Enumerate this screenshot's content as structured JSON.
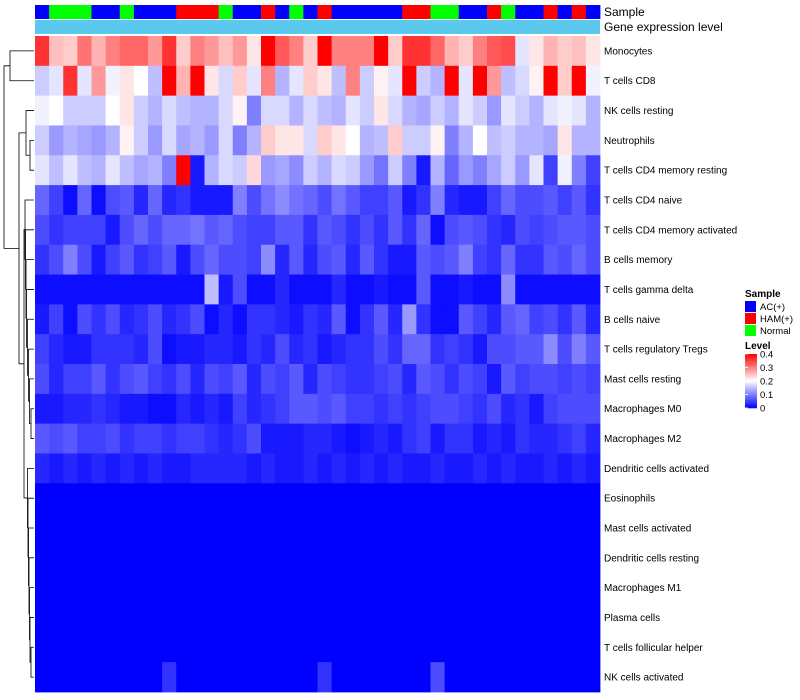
{
  "chart_data": {
    "type": "heatmap",
    "annotation_titles": [
      "Sample",
      "Gene expression level"
    ],
    "colors": {
      "AC(+)": "#0000ff",
      "HAM(+)": "#ff0000",
      "Normal": "#00ff00",
      "gene_expression_bar": "#5bc8ee",
      "low": "#0000ff",
      "mid": "#ffffff",
      "high": "#ff0000"
    },
    "sample_groups": [
      "AC(+)",
      "Normal",
      "Normal",
      "Normal",
      "AC(+)",
      "AC(+)",
      "Normal",
      "AC(+)",
      "AC(+)",
      "AC(+)",
      "HAM(+)",
      "HAM(+)",
      "HAM(+)",
      "Normal",
      "AC(+)",
      "AC(+)",
      "HAM(+)",
      "AC(+)",
      "Normal",
      "AC(+)",
      "HAM(+)",
      "AC(+)",
      "AC(+)",
      "AC(+)",
      "AC(+)",
      "AC(+)",
      "HAM(+)",
      "HAM(+)",
      "Normal",
      "Normal",
      "AC(+)",
      "AC(+)",
      "HAM(+)",
      "Normal",
      "AC(+)",
      "AC(+)",
      "HAM(+)",
      "AC(+)",
      "HAM(+)",
      "AC(+)"
    ],
    "rows": [
      "Monocytes",
      "T cells CD8",
      "NK cells resting",
      "Neutrophils",
      "T cells CD4 memory resting",
      "T cells CD4 naive",
      "T cells CD4 memory activated",
      "B cells memory",
      "T cells gamma delta",
      "B cells naive",
      "T cells regulatory  Tregs",
      "Mast cells resting",
      "Macrophages M0",
      "Macrophages M2",
      "Dendritic cells activated",
      "Eosinophils",
      "Mast cells activated",
      "Dendritic cells resting",
      "Macrophages M1",
      "Plasma cells",
      "T cells follicular helper",
      "NK cells activated"
    ],
    "values": [
      [
        0.36,
        0.25,
        0.24,
        0.31,
        0.26,
        0.3,
        0.32,
        0.32,
        0.28,
        0.36,
        0.24,
        0.3,
        0.28,
        0.25,
        0.28,
        0.22,
        0.4,
        0.33,
        0.3,
        0.24,
        0.42,
        0.3,
        0.3,
        0.3,
        0.42,
        0.24,
        0.36,
        0.36,
        0.32,
        0.26,
        0.24,
        0.3,
        0.33,
        0.34,
        0.18,
        0.22,
        0.26,
        0.24,
        0.25,
        0.22
      ],
      [
        0.16,
        0.18,
        0.36,
        0.18,
        0.28,
        0.19,
        0.22,
        0.2,
        0.15,
        0.42,
        0.26,
        0.42,
        0.22,
        0.17,
        0.24,
        0.18,
        0.3,
        0.14,
        0.18,
        0.24,
        0.22,
        0.15,
        0.3,
        0.16,
        0.21,
        0.18,
        0.4,
        0.16,
        0.14,
        0.42,
        0.18,
        0.4,
        0.28,
        0.15,
        0.17,
        0.21,
        0.4,
        0.24,
        0.4,
        0.19
      ],
      [
        0.19,
        0.2,
        0.16,
        0.16,
        0.16,
        0.2,
        0.22,
        0.16,
        0.14,
        0.17,
        0.15,
        0.14,
        0.14,
        0.17,
        0.21,
        0.1,
        0.17,
        0.17,
        0.14,
        0.17,
        0.15,
        0.14,
        0.18,
        0.16,
        0.22,
        0.17,
        0.14,
        0.13,
        0.16,
        0.14,
        0.18,
        0.16,
        0.12,
        0.18,
        0.16,
        0.14,
        0.18,
        0.19,
        0.18,
        0.14
      ],
      [
        0.16,
        0.12,
        0.14,
        0.13,
        0.12,
        0.14,
        0.21,
        0.16,
        0.12,
        0.17,
        0.13,
        0.14,
        0.12,
        0.17,
        0.1,
        0.14,
        0.24,
        0.22,
        0.22,
        0.17,
        0.24,
        0.22,
        0.2,
        0.14,
        0.15,
        0.24,
        0.16,
        0.16,
        0.21,
        0.1,
        0.14,
        0.2,
        0.15,
        0.16,
        0.14,
        0.14,
        0.13,
        0.22,
        0.14,
        0.14
      ],
      [
        0.18,
        0.15,
        0.18,
        0.15,
        0.14,
        0.18,
        0.15,
        0.13,
        0.14,
        0.1,
        0.42,
        0.02,
        0.14,
        0.17,
        0.16,
        0.23,
        0.12,
        0.13,
        0.11,
        0.16,
        0.14,
        0.17,
        0.16,
        0.12,
        0.09,
        0.16,
        0.1,
        0.02,
        0.14,
        0.08,
        0.12,
        0.1,
        0.13,
        0.16,
        0.12,
        0.18,
        0.05,
        0.19,
        0.1,
        0.05
      ],
      [
        0.08,
        0.05,
        0.01,
        0.08,
        0.01,
        0.06,
        0.07,
        0.03,
        0.08,
        0.03,
        0.04,
        0.02,
        0.02,
        0.02,
        0.1,
        0.06,
        0.09,
        0.11,
        0.09,
        0.08,
        0.06,
        0.09,
        0.07,
        0.05,
        0.05,
        0.07,
        0.02,
        0.04,
        0.1,
        0.03,
        0.02,
        0.02,
        0.05,
        0.08,
        0.06,
        0.06,
        0.07,
        0.05,
        0.07,
        0.04
      ],
      [
        0.06,
        0.04,
        0.05,
        0.05,
        0.05,
        0.02,
        0.06,
        0.08,
        0.06,
        0.08,
        0.08,
        0.09,
        0.07,
        0.08,
        0.06,
        0.05,
        0.05,
        0.07,
        0.07,
        0.04,
        0.07,
        0.06,
        0.04,
        0.06,
        0.04,
        0.07,
        0.04,
        0.08,
        0.01,
        0.06,
        0.07,
        0.06,
        0.04,
        0.03,
        0.06,
        0.05,
        0.06,
        0.07,
        0.07,
        0.06
      ],
      [
        0.04,
        0.06,
        0.1,
        0.06,
        0.02,
        0.05,
        0.07,
        0.04,
        0.05,
        0.07,
        0.02,
        0.06,
        0.08,
        0.06,
        0.06,
        0.05,
        0.11,
        0.03,
        0.07,
        0.03,
        0.06,
        0.07,
        0.03,
        0.07,
        0.04,
        0.02,
        0.02,
        0.07,
        0.06,
        0.07,
        0.1,
        0.05,
        0.04,
        0.08,
        0.04,
        0.04,
        0.07,
        0.06,
        0.08,
        0.06
      ],
      [
        0.01,
        0.01,
        0.01,
        0.01,
        0.01,
        0.01,
        0.01,
        0.01,
        0.01,
        0.01,
        0.01,
        0.01,
        0.15,
        0.02,
        0.06,
        0.01,
        0.01,
        0.03,
        0.01,
        0.01,
        0.01,
        0.03,
        0.01,
        0.01,
        0.02,
        0.01,
        0.01,
        0.07,
        0.01,
        0.01,
        0.02,
        0.01,
        0.01,
        0.11,
        0.01,
        0.01,
        0.01,
        0.01,
        0.01,
        0.01
      ],
      [
        0.02,
        0.05,
        0.01,
        0.06,
        0.04,
        0.06,
        0.03,
        0.04,
        0.06,
        0.03,
        0.04,
        0.06,
        0.01,
        0.03,
        0.01,
        0.04,
        0.04,
        0.03,
        0.02,
        0.04,
        0.03,
        0.07,
        0.01,
        0.04,
        0.07,
        0.03,
        0.12,
        0.04,
        0.01,
        0.01,
        0.07,
        0.05,
        0.03,
        0.07,
        0.08,
        0.05,
        0.06,
        0.04,
        0.07,
        0.03
      ],
      [
        0.05,
        0.03,
        0.02,
        0.02,
        0.04,
        0.04,
        0.04,
        0.03,
        0.06,
        0.01,
        0.02,
        0.02,
        0.03,
        0.03,
        0.02,
        0.04,
        0.03,
        0.06,
        0.03,
        0.04,
        0.02,
        0.03,
        0.04,
        0.04,
        0.06,
        0.04,
        0.08,
        0.08,
        0.04,
        0.05,
        0.04,
        0.02,
        0.06,
        0.06,
        0.07,
        0.07,
        0.11,
        0.06,
        0.1,
        0.07
      ],
      [
        0.06,
        0.03,
        0.05,
        0.05,
        0.07,
        0.04,
        0.06,
        0.07,
        0.05,
        0.04,
        0.06,
        0.03,
        0.06,
        0.05,
        0.07,
        0.03,
        0.06,
        0.05,
        0.07,
        0.03,
        0.06,
        0.05,
        0.04,
        0.04,
        0.05,
        0.06,
        0.03,
        0.07,
        0.06,
        0.04,
        0.06,
        0.05,
        0.02,
        0.07,
        0.05,
        0.06,
        0.06,
        0.05,
        0.06,
        0.05
      ],
      [
        0.02,
        0.02,
        0.03,
        0.03,
        0.04,
        0.03,
        0.02,
        0.02,
        0.01,
        0.01,
        0.03,
        0.02,
        0.03,
        0.02,
        0.05,
        0.03,
        0.04,
        0.05,
        0.07,
        0.07,
        0.06,
        0.07,
        0.05,
        0.05,
        0.04,
        0.05,
        0.04,
        0.05,
        0.06,
        0.06,
        0.05,
        0.04,
        0.06,
        0.03,
        0.04,
        0.02,
        0.05,
        0.06,
        0.06,
        0.06
      ],
      [
        0.07,
        0.06,
        0.07,
        0.05,
        0.05,
        0.06,
        0.04,
        0.05,
        0.05,
        0.04,
        0.05,
        0.05,
        0.04,
        0.03,
        0.04,
        0.06,
        0.02,
        0.02,
        0.02,
        0.03,
        0.03,
        0.02,
        0.01,
        0.02,
        0.03,
        0.02,
        0.04,
        0.05,
        0.02,
        0.04,
        0.04,
        0.02,
        0.03,
        0.02,
        0.04,
        0.03,
        0.03,
        0.04,
        0.05,
        0.03
      ],
      [
        0.03,
        0.02,
        0.03,
        0.02,
        0.03,
        0.02,
        0.03,
        0.02,
        0.03,
        0.02,
        0.02,
        0.03,
        0.03,
        0.03,
        0.03,
        0.02,
        0.03,
        0.02,
        0.02,
        0.03,
        0.02,
        0.03,
        0.02,
        0.03,
        0.02,
        0.03,
        0.02,
        0.02,
        0.03,
        0.02,
        0.02,
        0.03,
        0.02,
        0.03,
        0.02,
        0.02,
        0.03,
        0.02,
        0.03,
        0.02
      ],
      [
        0,
        0,
        0,
        0,
        0,
        0,
        0,
        0,
        0,
        0,
        0,
        0,
        0,
        0,
        0,
        0,
        0,
        0,
        0,
        0,
        0,
        0,
        0,
        0,
        0,
        0,
        0,
        0,
        0,
        0,
        0,
        0,
        0,
        0,
        0,
        0,
        0,
        0,
        0,
        0
      ],
      [
        0,
        0,
        0,
        0,
        0,
        0,
        0,
        0,
        0,
        0,
        0,
        0,
        0,
        0,
        0,
        0,
        0,
        0,
        0,
        0,
        0,
        0,
        0,
        0,
        0,
        0,
        0,
        0,
        0,
        0,
        0,
        0,
        0,
        0,
        0,
        0,
        0,
        0,
        0,
        0
      ],
      [
        0,
        0,
        0,
        0,
        0,
        0,
        0,
        0,
        0,
        0,
        0,
        0,
        0,
        0,
        0,
        0,
        0,
        0,
        0,
        0,
        0,
        0,
        0,
        0,
        0,
        0,
        0,
        0,
        0,
        0,
        0,
        0,
        0,
        0,
        0,
        0,
        0,
        0,
        0,
        0
      ],
      [
        0,
        0,
        0,
        0,
        0,
        0,
        0,
        0,
        0,
        0,
        0,
        0,
        0,
        0,
        0,
        0,
        0,
        0,
        0,
        0,
        0,
        0,
        0,
        0,
        0,
        0,
        0,
        0,
        0,
        0,
        0,
        0,
        0,
        0,
        0,
        0,
        0,
        0,
        0,
        0
      ],
      [
        0,
        0,
        0,
        0,
        0,
        0,
        0,
        0,
        0,
        0,
        0,
        0,
        0,
        0,
        0,
        0,
        0,
        0,
        0,
        0,
        0,
        0,
        0,
        0,
        0,
        0,
        0,
        0,
        0,
        0,
        0,
        0,
        0,
        0,
        0,
        0,
        0,
        0,
        0,
        0
      ],
      [
        0,
        0,
        0,
        0,
        0,
        0,
        0,
        0,
        0,
        0,
        0,
        0,
        0,
        0,
        0,
        0,
        0,
        0,
        0,
        0,
        0,
        0,
        0,
        0,
        0,
        0,
        0,
        0,
        0,
        0,
        0,
        0,
        0,
        0,
        0,
        0,
        0,
        0,
        0,
        0
      ],
      [
        0,
        0,
        0,
        0,
        0,
        0,
        0,
        0,
        0,
        0.04,
        0,
        0,
        0,
        0,
        0,
        0,
        0,
        0,
        0,
        0,
        0.04,
        0,
        0,
        0,
        0,
        0,
        0,
        0,
        0.06,
        0,
        0,
        0,
        0,
        0,
        0,
        0,
        0,
        0,
        0,
        0
      ]
    ],
    "legend": {
      "sample_title": "Sample",
      "sample_items": [
        "AC(+)",
        "HAM(+)",
        "Normal"
      ],
      "level_title": "Level",
      "level_ticks": [
        "0.4",
        "0.3",
        "0.2",
        "0.1",
        "0"
      ],
      "level_range": [
        0,
        0.4
      ],
      "placement": "right"
    }
  }
}
